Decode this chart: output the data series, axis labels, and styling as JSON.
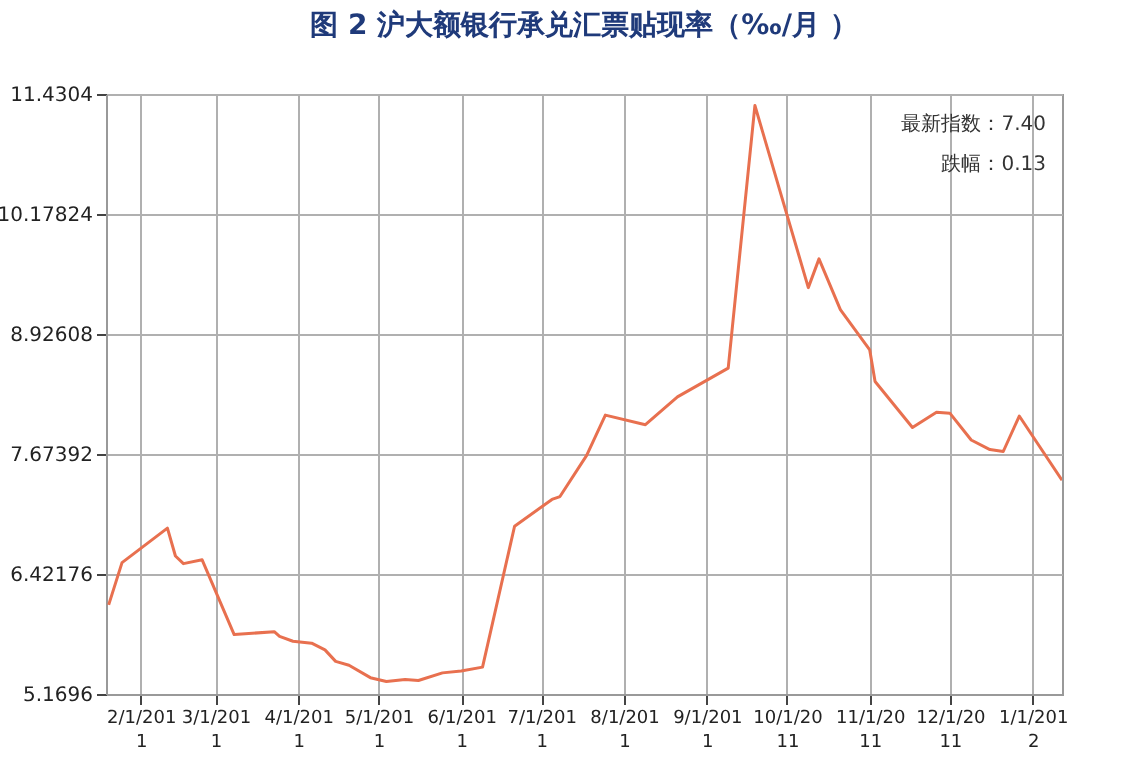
{
  "chart_data": {
    "type": "line",
    "title": "图 2 沪大额银行承兑汇票贴现率（‰/月 ）",
    "x": [
      "2011-01-20",
      "2011-01-25",
      "2011-02-11",
      "2011-02-14",
      "2011-02-17",
      "2011-02-24",
      "2011-03-08",
      "2011-03-23",
      "2011-03-25",
      "2011-03-30",
      "2011-04-06",
      "2011-04-11",
      "2011-04-15",
      "2011-04-20",
      "2011-04-28",
      "2011-05-04",
      "2011-05-11",
      "2011-05-16",
      "2011-05-25",
      "2011-06-01",
      "2011-06-09",
      "2011-06-21",
      "2011-07-05",
      "2011-07-08",
      "2011-07-18",
      "2011-07-25",
      "2011-08-09",
      "2011-08-21",
      "2011-09-09",
      "2011-09-19",
      "2011-10-09",
      "2011-10-13",
      "2011-10-21",
      "2011-11-01",
      "2011-11-03",
      "2011-11-17",
      "2011-11-26",
      "2011-12-01",
      "2011-12-09",
      "2011-12-16",
      "2011-12-21",
      "2011-12-27",
      "2012-01-12"
    ],
    "series": [
      {
        "color": "#e8704f",
        "values": [
          6.1,
          6.54,
          6.9,
          6.61,
          6.53,
          6.57,
          5.79,
          5.82,
          5.77,
          5.72,
          5.7,
          5.63,
          5.51,
          5.47,
          5.34,
          5.3,
          5.32,
          5.31,
          5.39,
          5.41,
          5.45,
          6.92,
          7.2,
          7.23,
          7.66,
          8.08,
          7.98,
          8.27,
          8.57,
          11.31,
          9.41,
          9.71,
          9.18,
          8.76,
          8.43,
          7.95,
          8.11,
          8.1,
          7.82,
          7.72,
          7.7,
          8.07,
          7.4
        ]
      }
    ],
    "xlim": [
      "2011-01-19",
      "2012-01-12"
    ],
    "xticks": [
      {
        "value": "2011-02-01",
        "label": "2/1/2011"
      },
      {
        "value": "2011-03-01",
        "label": "3/1/2011"
      },
      {
        "value": "2011-04-01",
        "label": "4/1/2011"
      },
      {
        "value": "2011-05-01",
        "label": "5/1/2011"
      },
      {
        "value": "2011-06-01",
        "label": "6/1/2011"
      },
      {
        "value": "2011-07-01",
        "label": "7/1/2011"
      },
      {
        "value": "2011-08-01",
        "label": "8/1/2011"
      },
      {
        "value": "2011-09-01",
        "label": "9/1/2011"
      },
      {
        "value": "2011-10-01",
        "label": "10/1/2011"
      },
      {
        "value": "2011-11-01",
        "label": "11/1/2011"
      },
      {
        "value": "2011-12-01",
        "label": "12/1/2011"
      },
      {
        "value": "2012-01-01",
        "label": "1/1/2012"
      }
    ],
    "ylim": [
      5.1696,
      11.4304
    ],
    "yticks": [
      5.1696,
      6.42176,
      7.67392,
      8.92608,
      10.17824,
      11.4304
    ],
    "grid": true,
    "line_style": "solid",
    "marker": "none",
    "annotations": [
      "最新指数：7.40",
      "跌幅：0.13"
    ]
  }
}
